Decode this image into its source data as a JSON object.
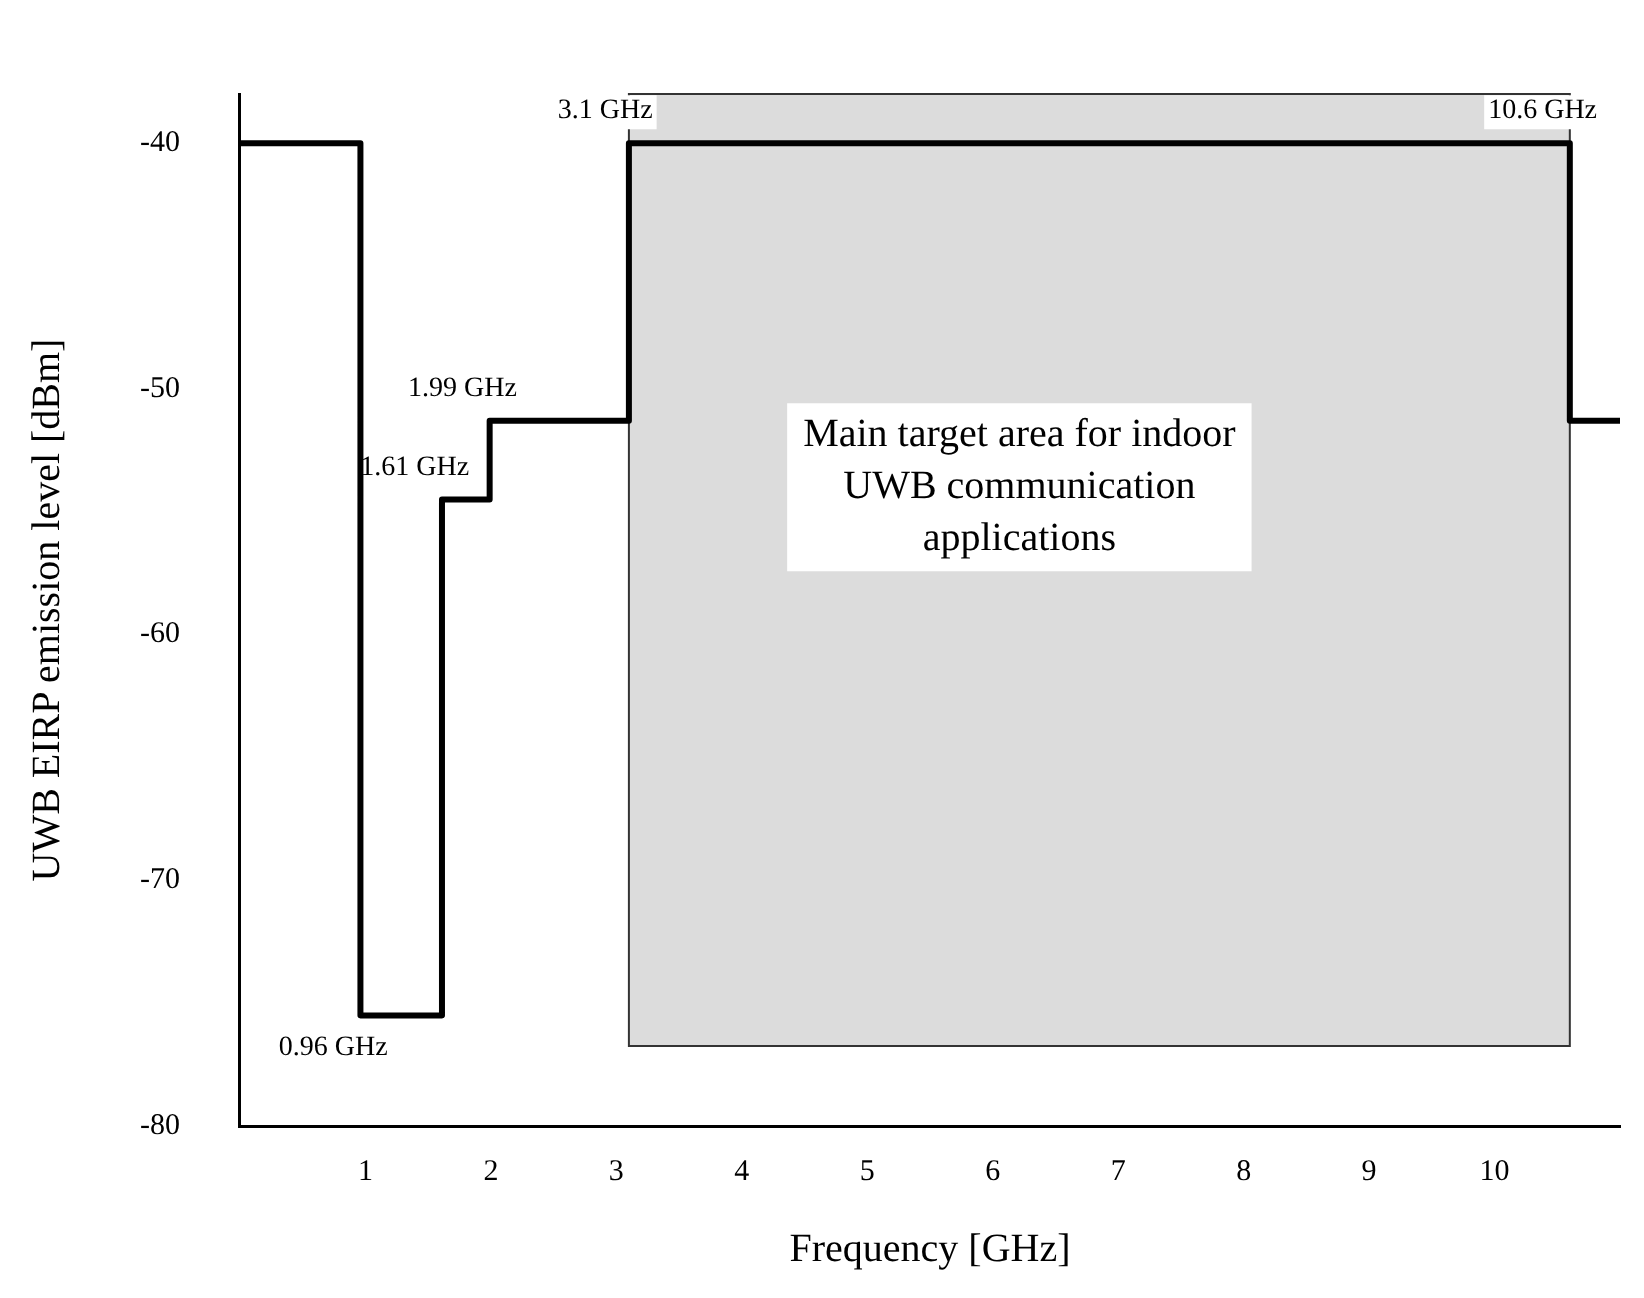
{
  "chart_data": {
    "type": "step",
    "xlabel": "Frequency [GHz]",
    "ylabel": "UWB EIRP emission level [dBm]",
    "x": [
      0,
      0.96,
      1.61,
      1.99,
      3.1,
      10.6,
      11
    ],
    "series": [
      {
        "color": "#000000",
        "values": [
          -40,
          -75.5,
          -54.5,
          -51.3,
          -40,
          -51.3,
          -51.3
        ]
      }
    ],
    "xlim": [
      0,
      11
    ],
    "xticks": [
      1,
      2,
      3,
      4,
      5,
      6,
      7,
      8,
      9,
      10
    ],
    "ylim": [
      -80,
      -38
    ],
    "yticks": [
      -80,
      -70,
      -60,
      -50,
      -40
    ],
    "grid": false,
    "legend": false,
    "marker": "none",
    "line_style": "solid",
    "bands": [
      {
        "axis": "x",
        "from": 3.1,
        "to": 10.6,
        "label": "Main target area for indoor UWB communication applications",
        "color": "#dcdcdc"
      }
    ],
    "annotations": [
      {
        "text": "3.1 GHz",
        "x": 3.1,
        "y": -40
      },
      {
        "text": "10.6 GHz",
        "x": 10.6,
        "y": -40
      },
      {
        "text": "1.99 GHz",
        "x": 1.99,
        "y": -51.3
      },
      {
        "text": "1.61 GHz",
        "x": 1.61,
        "y": -54.5
      },
      {
        "text": "0.96 GHz",
        "x": 0.96,
        "y": -75.5
      }
    ]
  }
}
